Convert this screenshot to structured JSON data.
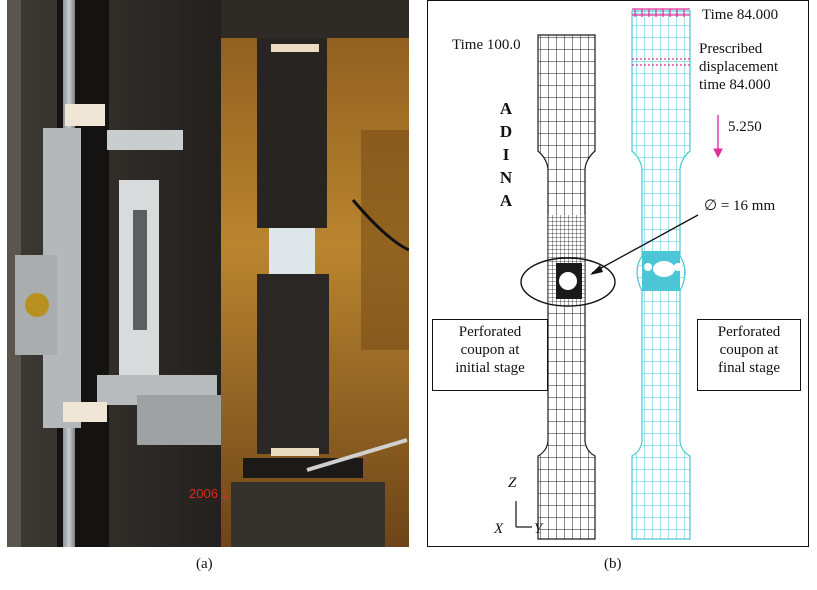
{
  "captions": {
    "a": "(a)",
    "b": "(b)"
  },
  "photo": {
    "date_stamp": "2006 1"
  },
  "simulation": {
    "time_initial": "Time 100.0",
    "time_final": "Time 84.000",
    "prescribed_label_line1": "Prescribed",
    "prescribed_label_line2": "displacement",
    "prescribed_label_line3": "time 84.000",
    "displacement_value": "5.250",
    "hole_diameter": "∅ = 16 mm",
    "software_letters": [
      "A",
      "D",
      "I",
      "N",
      "A"
    ],
    "initial_box_line1": "Perforated",
    "initial_box_line2": "coupon at",
    "initial_box_line3": "initial stage",
    "final_box_line1": "Perforated",
    "final_box_line2": "coupon at",
    "final_box_line3": "final stage",
    "axis_z": "Z",
    "axis_x": "X",
    "axis_y": "Y"
  },
  "colors": {
    "mesh_initial": "#1a1a1a",
    "mesh_final": "#4cc6d6",
    "load_arrows": "#e0309a"
  }
}
